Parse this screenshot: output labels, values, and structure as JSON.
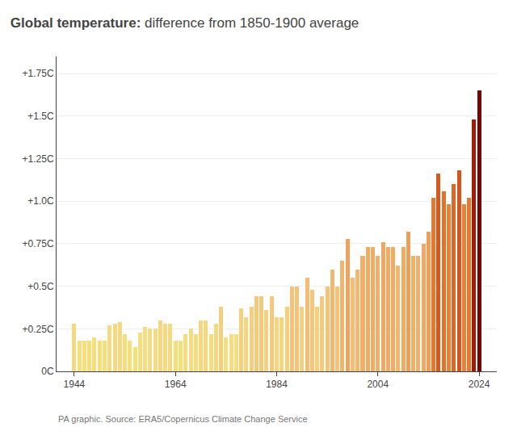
{
  "chart_data": {
    "type": "bar",
    "title": "Global temperature:",
    "subtitle": "difference from 1850-1900 average",
    "annotations": [
      "PA graphic. Source: ERA5/Copernicus Climate Change Service"
    ],
    "x": [
      1944,
      1945,
      1946,
      1947,
      1948,
      1949,
      1950,
      1951,
      1952,
      1953,
      1954,
      1955,
      1956,
      1957,
      1958,
      1959,
      1960,
      1961,
      1962,
      1963,
      1964,
      1965,
      1966,
      1967,
      1968,
      1969,
      1970,
      1971,
      1972,
      1973,
      1974,
      1975,
      1976,
      1977,
      1978,
      1979,
      1980,
      1981,
      1982,
      1983,
      1984,
      1985,
      1986,
      1987,
      1988,
      1989,
      1990,
      1991,
      1992,
      1993,
      1994,
      1995,
      1996,
      1997,
      1998,
      1999,
      2000,
      2001,
      2002,
      2003,
      2004,
      2005,
      2006,
      2007,
      2008,
      2009,
      2010,
      2011,
      2012,
      2013,
      2014,
      2015,
      2016,
      2017,
      2018,
      2019,
      2020,
      2021,
      2022,
      2023,
      2024
    ],
    "values": [
      0.28,
      0.18,
      0.18,
      0.18,
      0.2,
      0.18,
      0.18,
      0.27,
      0.28,
      0.29,
      0.22,
      0.18,
      0.14,
      0.23,
      0.26,
      0.25,
      0.25,
      0.3,
      0.28,
      0.28,
      0.18,
      0.18,
      0.22,
      0.25,
      0.22,
      0.3,
      0.3,
      0.22,
      0.28,
      0.38,
      0.2,
      0.22,
      0.22,
      0.37,
      0.32,
      0.38,
      0.44,
      0.44,
      0.36,
      0.44,
      0.32,
      0.32,
      0.38,
      0.5,
      0.5,
      0.38,
      0.55,
      0.48,
      0.38,
      0.44,
      0.5,
      0.6,
      0.5,
      0.65,
      0.78,
      0.55,
      0.6,
      0.68,
      0.73,
      0.73,
      0.68,
      0.76,
      0.73,
      0.73,
      0.62,
      0.73,
      0.82,
      0.68,
      0.68,
      0.75,
      0.82,
      1.02,
      1.16,
      1.06,
      0.98,
      1.1,
      1.18,
      0.98,
      1.02,
      1.48,
      1.65
    ],
    "colors": [
      "#f5d981",
      "#f5df7a",
      "#f5df7a",
      "#f5df7a",
      "#f5de7c",
      "#f5df7a",
      "#f5df7a",
      "#f5da81",
      "#f5d981",
      "#f5d880",
      "#f5dd7f",
      "#f5df7a",
      "#f5e075",
      "#f5dd80",
      "#f5db81",
      "#f5dc82",
      "#f5dc82",
      "#f5d780",
      "#f5d981",
      "#f5d981",
      "#f5df7a",
      "#f5df7a",
      "#f5dd7f",
      "#f5dc82",
      "#f5dd7f",
      "#f5d780",
      "#f5d780",
      "#f5dd7f",
      "#f5d981",
      "#f5cf7d",
      "#f5de7c",
      "#f5dd7f",
      "#f5dd7f",
      "#f5d07d",
      "#f5d57f",
      "#f5cf7d",
      "#f5c97a",
      "#f5c97a",
      "#f5d17d",
      "#f5c97a",
      "#f5d57f",
      "#f5d57f",
      "#f5cf7d",
      "#f5c278",
      "#f5c278",
      "#f5cf7d",
      "#f4bd74",
      "#f5c579",
      "#f5cf7d",
      "#f5c97a",
      "#f5c278",
      "#f3b870",
      "#f5c278",
      "#f2b36b",
      "#efa45d",
      "#f4bd74",
      "#f3b870",
      "#f1b069",
      "#f0ab65",
      "#f0ab65",
      "#f1b069",
      "#efa761",
      "#f0ab65",
      "#f0ab65",
      "#f2b66e",
      "#f0ab65",
      "#ee9e56",
      "#f1b069",
      "#f1b069",
      "#f0a963",
      "#ee9e56",
      "#e47932",
      "#d6591d",
      "#e2712a",
      "#e78239",
      "#de6725",
      "#d4541b",
      "#e78239",
      "#e47932",
      "#a11d08",
      "#780505"
    ],
    "xlim": [
      1940.5,
      2027.5
    ],
    "xticks": [
      1944,
      1964,
      1984,
      2004,
      2024
    ],
    "ylim": [
      0,
      1.85
    ],
    "yticks": [
      {
        "value": 0,
        "label": "0C"
      },
      {
        "value": 0.25,
        "label": "+0.25C"
      },
      {
        "value": 0.5,
        "label": "+0.5C"
      },
      {
        "value": 0.75,
        "label": "+0.75C"
      },
      {
        "value": 1.0,
        "label": "+1.0C"
      },
      {
        "value": 1.25,
        "label": "+1.25C"
      },
      {
        "value": 1.5,
        "label": "+1.5C"
      },
      {
        "value": 1.75,
        "label": "+1.75C"
      }
    ],
    "grid": true
  }
}
